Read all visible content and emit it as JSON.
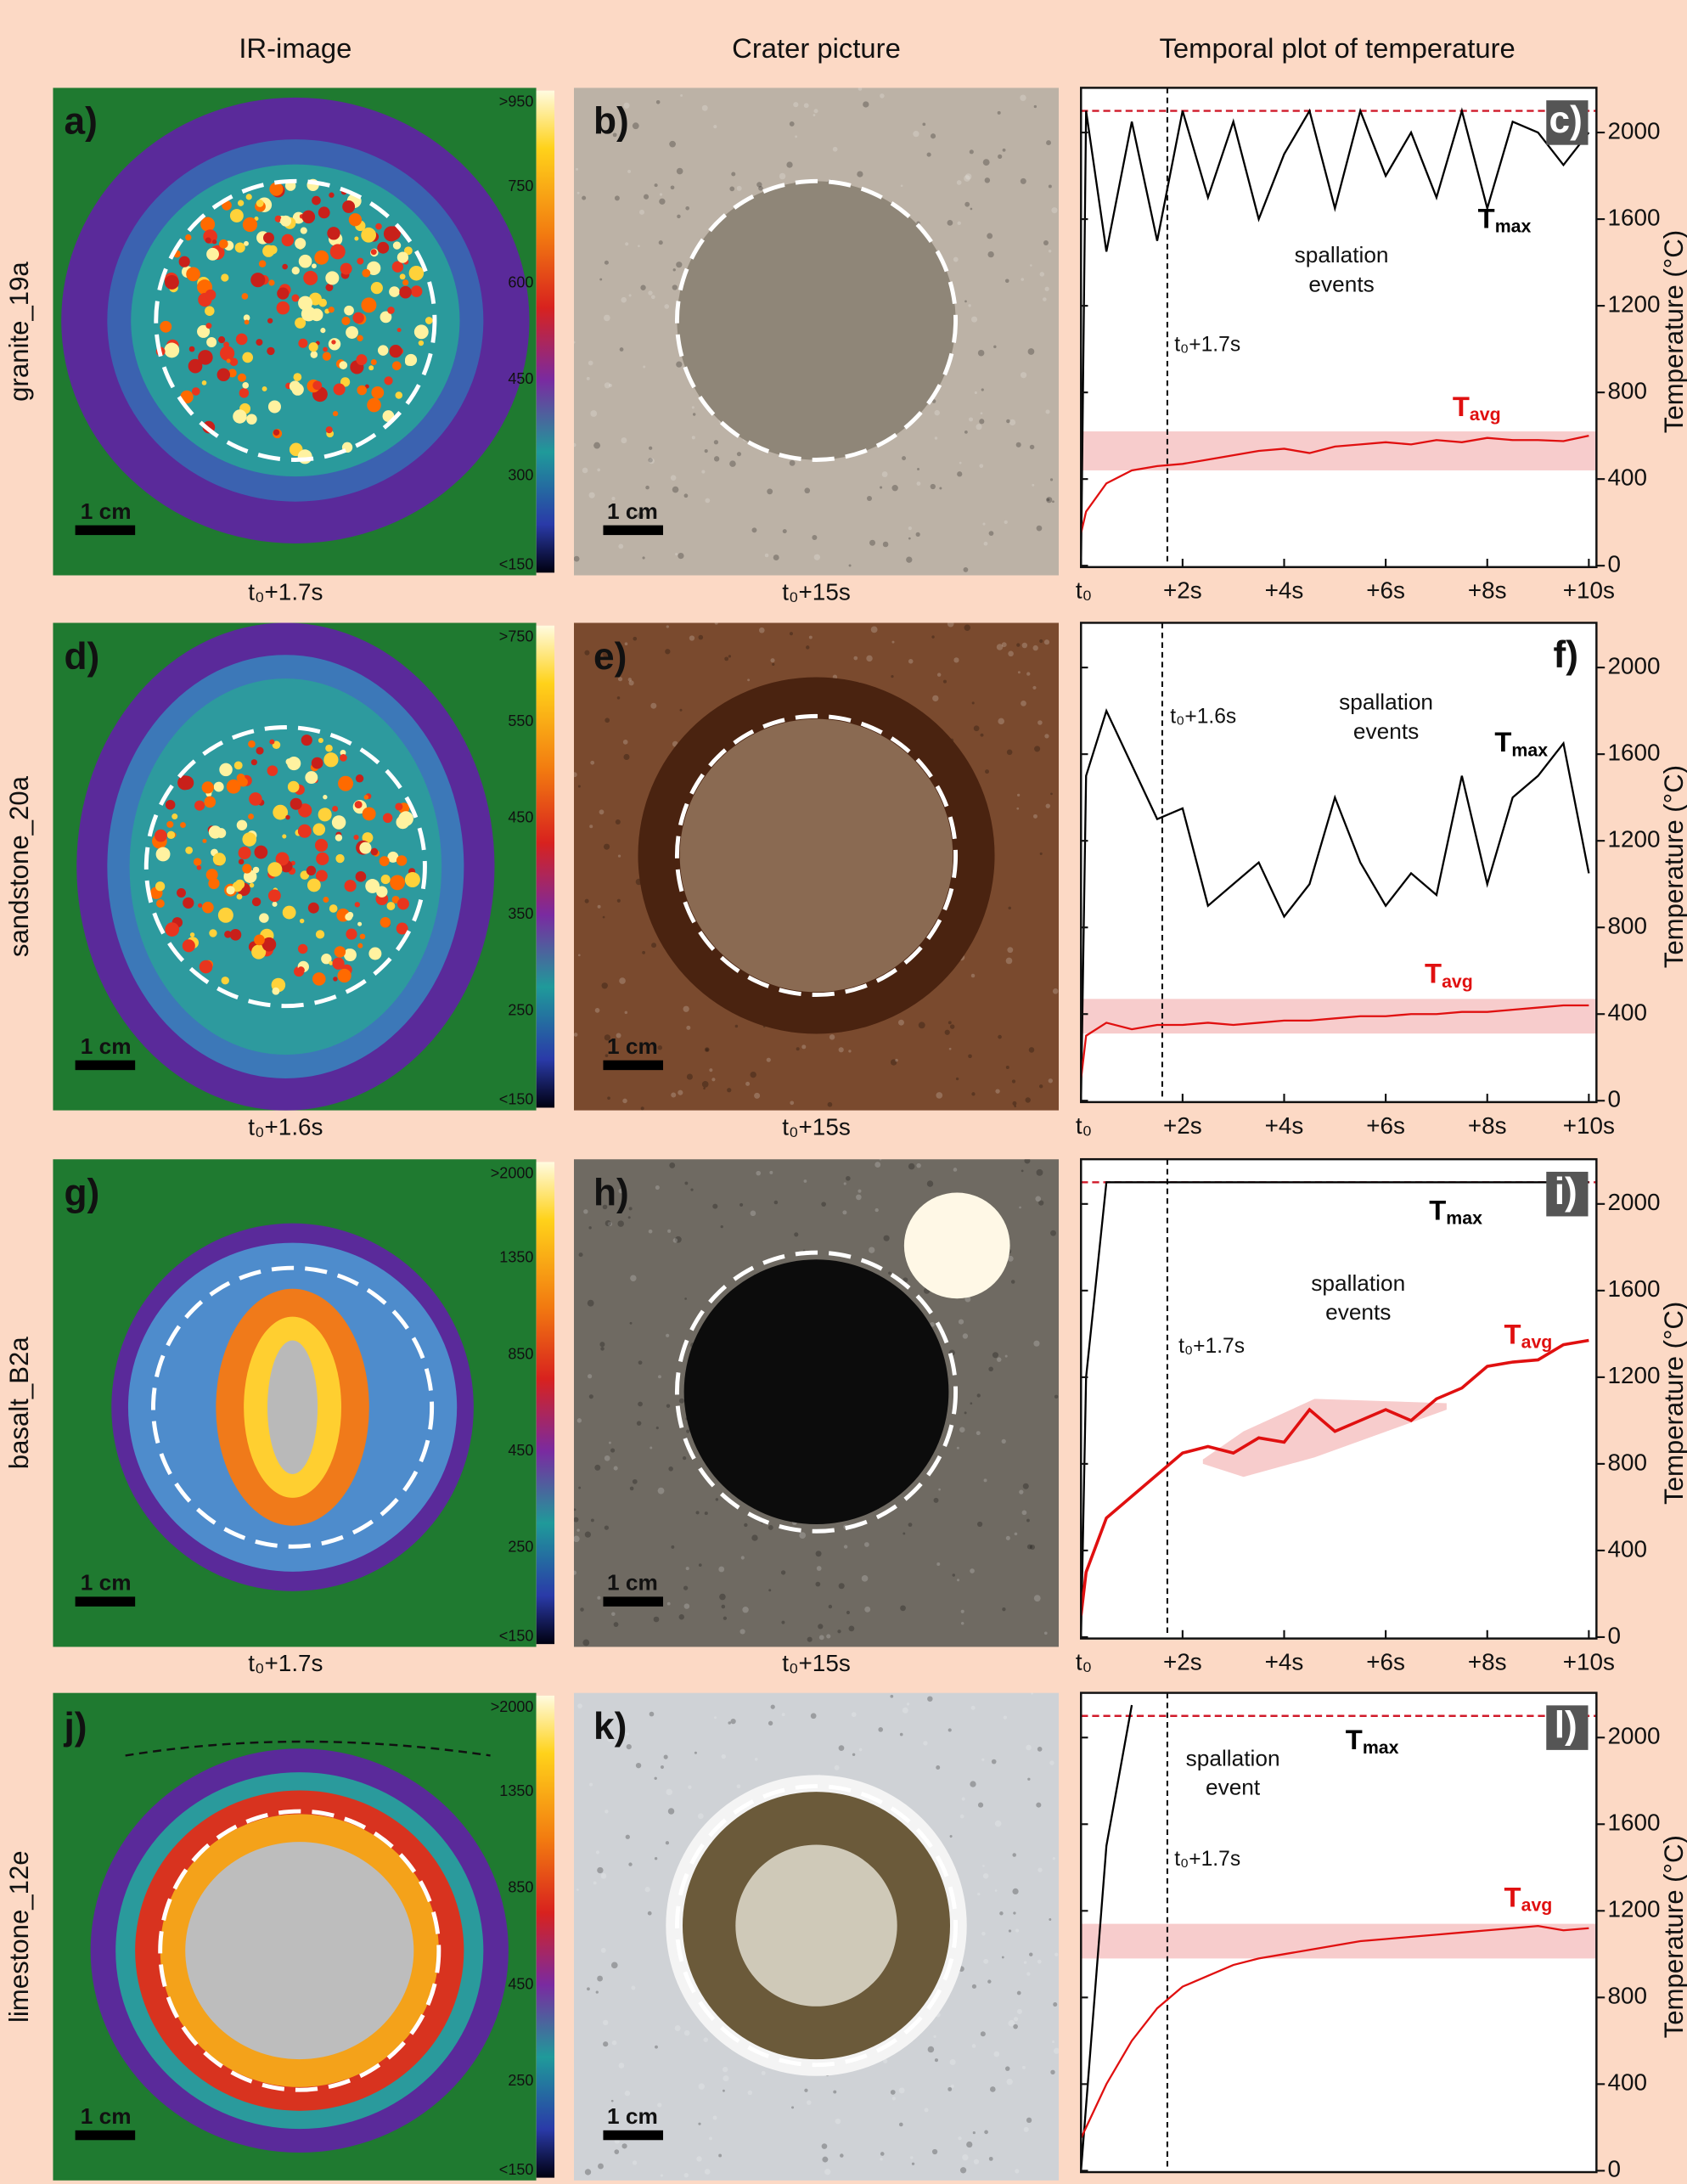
{
  "headers": [
    "IR-image",
    "Crater picture",
    "Temporal plot of temperature"
  ],
  "rows": [
    {
      "sample": "granite_19a",
      "ir": {
        "label": "a)",
        "time": "t₀+1.7s",
        "scale": "1 cm",
        "colorbar": [
          ">950",
          "750",
          "600",
          "450",
          "300",
          "<150"
        ]
      },
      "crater": {
        "label": "b)",
        "time": "t₀+15s",
        "scale": "1 cm"
      }
    },
    {
      "sample": "sandstone_20a",
      "ir": {
        "label": "d)",
        "time": "t₀+1.6s",
        "scale": "1 cm",
        "colorbar": [
          ">750",
          "550",
          "450",
          "350",
          "250",
          "<150"
        ]
      },
      "crater": {
        "label": "e)",
        "time": "t₀+15s",
        "scale": "1 cm"
      }
    },
    {
      "sample": "basalt_B2a",
      "ir": {
        "label": "g)",
        "time": "t₀+1.7s",
        "scale": "1 cm",
        "colorbar": [
          ">2000",
          "1350",
          "850",
          "450",
          "250",
          "<150"
        ]
      },
      "crater": {
        "label": "h)",
        "time": "t₀+15s",
        "scale": "1 cm"
      }
    },
    {
      "sample": "limestone_12e",
      "ir": {
        "label": "j)",
        "scale": "1 cm",
        "colorbar": [
          ">2000",
          "1350",
          "850",
          "450",
          "250",
          "<150"
        ]
      },
      "crater": {
        "label": "k)",
        "scale": "1 cm"
      }
    }
  ],
  "chart_data": [
    {
      "type": "line",
      "label": "c)",
      "label_box": true,
      "ylabel": "Temperature (°C)",
      "x": [
        0,
        0.1,
        0.5,
        1,
        1.5,
        2,
        2.5,
        3,
        3.5,
        4,
        4.5,
        5,
        5.5,
        6,
        6.5,
        7,
        7.5,
        8,
        8.5,
        9,
        9.5,
        10
      ],
      "xlim": [
        0,
        10.15
      ],
      "xticks": [
        {
          "value": 0,
          "label": "t₀"
        },
        {
          "value": 2,
          "label": "+2s"
        },
        {
          "value": 4,
          "label": "+4s"
        },
        {
          "value": 6,
          "label": "+6s"
        },
        {
          "value": 8,
          "label": "+8s"
        },
        {
          "value": 10,
          "label": "+10s"
        }
      ],
      "ylim": [
        0,
        2200
      ],
      "yticks": [
        0,
        400,
        800,
        1200,
        1600,
        2000
      ],
      "series": [
        {
          "name": "T",
          "name_sub": "max",
          "color": "#000000",
          "values": [
            0,
            2100,
            1450,
            2050,
            1500,
            2100,
            1700,
            2050,
            1600,
            1900,
            2100,
            1650,
            2100,
            1800,
            2000,
            1700,
            2100,
            1650,
            2050,
            2000,
            1850,
            2000
          ]
        },
        {
          "name": "T",
          "name_sub": "avg",
          "color": "#e01010",
          "values": [
            150,
            250,
            380,
            440,
            460,
            470,
            490,
            510,
            530,
            540,
            520,
            550,
            560,
            570,
            560,
            580,
            570,
            590,
            580,
            580,
            575,
            600
          ]
        }
      ],
      "band": [
        440,
        620
      ],
      "band_color": "#f7cccc",
      "max_line": 2100,
      "vline": 1.7,
      "vline_label": "t₀+1.7s",
      "annotation": [
        "spallation",
        "events"
      ]
    },
    {
      "type": "line",
      "label": "f)",
      "label_box": false,
      "ylabel": "Temperature (°C)",
      "x": [
        0,
        0.1,
        0.5,
        1,
        1.5,
        2,
        2.5,
        3,
        3.5,
        4,
        4.5,
        5,
        5.5,
        6,
        6.5,
        7,
        7.5,
        8,
        8.5,
        9,
        9.5,
        10
      ],
      "xlim": [
        0,
        10.15
      ],
      "xticks": [
        {
          "value": 0,
          "label": "t₀"
        },
        {
          "value": 2,
          "label": "+2s"
        },
        {
          "value": 4,
          "label": "+4s"
        },
        {
          "value": 6,
          "label": "+6s"
        },
        {
          "value": 8,
          "label": "+8s"
        },
        {
          "value": 10,
          "label": "+10s"
        }
      ],
      "ylim": [
        0,
        2200
      ],
      "yticks": [
        0,
        400,
        800,
        1200,
        1600,
        2000
      ],
      "series": [
        {
          "name": "T",
          "name_sub": "max",
          "color": "#000000",
          "values": [
            0,
            1500,
            1800,
            1550,
            1300,
            1350,
            900,
            1000,
            1100,
            850,
            1000,
            1400,
            1100,
            900,
            1050,
            950,
            1500,
            1000,
            1400,
            1500,
            1650,
            1050
          ]
        },
        {
          "name": "T",
          "name_sub": "avg",
          "color": "#e01010",
          "values": [
            100,
            300,
            360,
            330,
            350,
            350,
            360,
            350,
            360,
            370,
            370,
            380,
            390,
            390,
            400,
            400,
            410,
            410,
            420,
            430,
            440,
            440
          ]
        }
      ],
      "band": [
        310,
        470
      ],
      "band_color": "#f7cccc",
      "vline": 1.6,
      "vline_label": "t₀+1.6s",
      "annotation": [
        "spallation",
        "events"
      ]
    },
    {
      "type": "line",
      "label": "i)",
      "label_box": true,
      "ylabel": "Temperature (°C)",
      "x": [
        0,
        0.1,
        0.5,
        1,
        1.5,
        2,
        2.5,
        3,
        3.5,
        4,
        4.5,
        5,
        5.5,
        6,
        6.5,
        7,
        7.5,
        8,
        8.5,
        9,
        9.5,
        10
      ],
      "xlim": [
        0,
        10.15
      ],
      "xticks": [
        {
          "value": 0,
          "label": "t₀"
        },
        {
          "value": 2,
          "label": "+2s"
        },
        {
          "value": 4,
          "label": "+4s"
        },
        {
          "value": 6,
          "label": "+6s"
        },
        {
          "value": 8,
          "label": "+8s"
        },
        {
          "value": 10,
          "label": "+10s"
        }
      ],
      "ylim": [
        0,
        2200
      ],
      "yticks": [
        0,
        400,
        800,
        1200,
        1600,
        2000
      ],
      "series": [
        {
          "name": "T",
          "name_sub": "max",
          "color": "#000000",
          "values": [
            0,
            1200,
            2100,
            2100,
            2100,
            2100,
            2100,
            2100,
            2100,
            2100,
            2100,
            2100,
            2100,
            2100,
            2100,
            2100,
            2100,
            2100,
            2100,
            2100,
            2100,
            2100
          ]
        },
        {
          "name": "T",
          "name_sub": "avg",
          "color": "#e01010",
          "values": [
            100,
            300,
            550,
            650,
            750,
            850,
            880,
            850,
            920,
            900,
            1050,
            950,
            1000,
            1050,
            1000,
            1100,
            1150,
            1250,
            1270,
            1280,
            1350,
            1370
          ]
        }
      ],
      "shaded_area": {
        "x": [
          2.4,
          3.2,
          4.6,
          7.2
        ],
        "lower": [
          800,
          740,
          830,
          1050
        ],
        "upper": [
          820,
          950,
          1100,
          1080
        ]
      },
      "band_color": "#f7cccc",
      "max_line": 2100,
      "vline": 1.7,
      "vline_label": "t₀+1.7s",
      "annotation": [
        "spallation",
        "events"
      ]
    },
    {
      "type": "line",
      "label": "l)",
      "label_box": true,
      "ylabel": "Temperature (°C)",
      "x": [
        0,
        0.1,
        0.5,
        1,
        1.5,
        2,
        2.5,
        3,
        3.5,
        4,
        4.5,
        5,
        5.5,
        6,
        6.5,
        7,
        7.5,
        8,
        8.5,
        9,
        9.5,
        10
      ],
      "xlim": [
        0,
        10.15
      ],
      "ylim": [
        0,
        2200
      ],
      "yticks": [
        0,
        400,
        800,
        1200,
        1600,
        2000
      ],
      "series": [
        {
          "name": "T",
          "name_sub": "max",
          "color": "#000000",
          "values": [
            0,
            300,
            1500,
            2150,
            null,
            null,
            null,
            null,
            null,
            null,
            null,
            null,
            null,
            null,
            null,
            null,
            null,
            null,
            null,
            null,
            null,
            null
          ]
        },
        {
          "name": "T",
          "name_sub": "avg",
          "color": "#e01010",
          "values": [
            150,
            200,
            400,
            600,
            750,
            850,
            900,
            950,
            980,
            1000,
            1020,
            1040,
            1060,
            1070,
            1080,
            1090,
            1100,
            1110,
            1120,
            1130,
            1110,
            1120
          ]
        }
      ],
      "band": [
        980,
        1140
      ],
      "band_color": "#f7cccc",
      "max_line": 2100,
      "vline": 1.7,
      "vline_label": "t₀+1.7s",
      "annotation": [
        "spallation",
        "event"
      ]
    }
  ]
}
